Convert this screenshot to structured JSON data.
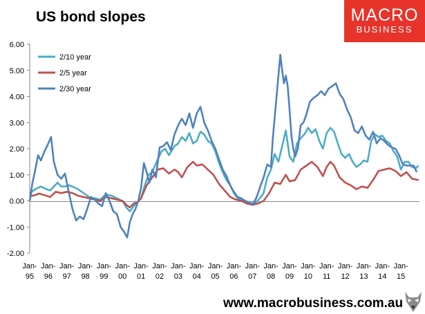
{
  "header": {
    "title": "US bond slopes"
  },
  "logo": {
    "line1": "MACRO",
    "line2": "BUSINESS"
  },
  "footer": {
    "url": "www.macrobusiness.com.au"
  },
  "colors": {
    "s2_10": "#4bacc6",
    "s2_5": "#c0504d",
    "s2_30": "#4f81bd",
    "brand": "#e8332a"
  },
  "chart_data": {
    "type": "line",
    "title": "US bond slopes",
    "xlabel": "",
    "ylabel": "",
    "xlim": [
      1995.0,
      2016.0
    ],
    "ylim": [
      -2.0,
      6.0
    ],
    "y_ticks": [
      "6.00",
      "5.00",
      "4.00",
      "3.00",
      "2.00",
      "1.00",
      "0.00",
      "-1.00",
      "-2.00"
    ],
    "x_ticks": [
      "Jan-95",
      "Jan-96",
      "Jan-97",
      "Jan-98",
      "Jan-99",
      "Jan-00",
      "Jan-01",
      "Jan-02",
      "Jan-03",
      "Jan-04",
      "Jan-05",
      "Jan-06",
      "Jan-07",
      "Jan-08",
      "Jan-09",
      "Jan-10",
      "Jan-11",
      "Jan-12",
      "Jan-13",
      "Jan-14",
      "Jan-15"
    ],
    "grid": false,
    "legend": "top-left",
    "series": [
      {
        "name": "2/10 year",
        "color": "#4bacc6",
        "points": [
          [
            1995.0,
            0.0
          ],
          [
            1995.1,
            0.35
          ],
          [
            1995.3,
            0.45
          ],
          [
            1995.6,
            0.55
          ],
          [
            1995.9,
            0.45
          ],
          [
            1996.1,
            0.4
          ],
          [
            1996.3,
            0.55
          ],
          [
            1996.5,
            0.7
          ],
          [
            1996.7,
            0.55
          ],
          [
            1996.9,
            0.55
          ],
          [
            1997.1,
            0.6
          ],
          [
            1997.3,
            0.55
          ],
          [
            1997.6,
            0.45
          ],
          [
            1997.9,
            0.3
          ],
          [
            1998.2,
            0.15
          ],
          [
            1998.5,
            0.1
          ],
          [
            1998.8,
            0.05
          ],
          [
            1999.1,
            0.25
          ],
          [
            1999.4,
            0.2
          ],
          [
            1999.7,
            0.1
          ],
          [
            2000.0,
            0.0
          ],
          [
            2000.2,
            -0.25
          ],
          [
            2000.4,
            -0.4
          ],
          [
            2000.6,
            -0.2
          ],
          [
            2000.8,
            -0.05
          ],
          [
            2001.0,
            0.1
          ],
          [
            2001.2,
            0.6
          ],
          [
            2001.4,
            1.0
          ],
          [
            2001.6,
            1.1
          ],
          [
            2001.9,
            1.6
          ],
          [
            2002.1,
            1.9
          ],
          [
            2002.3,
            2.0
          ],
          [
            2002.5,
            1.75
          ],
          [
            2002.8,
            2.1
          ],
          [
            2003.0,
            2.2
          ],
          [
            2003.2,
            2.45
          ],
          [
            2003.4,
            2.3
          ],
          [
            2003.6,
            2.6
          ],
          [
            2003.8,
            2.2
          ],
          [
            2004.0,
            2.3
          ],
          [
            2004.2,
            2.65
          ],
          [
            2004.4,
            2.55
          ],
          [
            2004.6,
            2.3
          ],
          [
            2004.8,
            2.2
          ],
          [
            2005.0,
            1.9
          ],
          [
            2005.2,
            1.45
          ],
          [
            2005.4,
            1.1
          ],
          [
            2005.6,
            0.8
          ],
          [
            2005.8,
            0.6
          ],
          [
            2006.0,
            0.3
          ],
          [
            2006.2,
            0.1
          ],
          [
            2006.4,
            0.05
          ],
          [
            2006.6,
            0.0
          ],
          [
            2006.8,
            -0.05
          ],
          [
            2007.0,
            -0.1
          ],
          [
            2007.2,
            -0.05
          ],
          [
            2007.4,
            0.1
          ],
          [
            2007.6,
            0.3
          ],
          [
            2007.8,
            0.9
          ],
          [
            2008.0,
            1.2
          ],
          [
            2008.2,
            1.8
          ],
          [
            2008.4,
            1.5
          ],
          [
            2008.6,
            2.1
          ],
          [
            2008.8,
            2.7
          ],
          [
            2009.0,
            1.7
          ],
          [
            2009.2,
            1.5
          ],
          [
            2009.4,
            2.2
          ],
          [
            2009.6,
            2.4
          ],
          [
            2009.8,
            2.55
          ],
          [
            2010.0,
            2.8
          ],
          [
            2010.2,
            2.6
          ],
          [
            2010.4,
            2.75
          ],
          [
            2010.6,
            2.3
          ],
          [
            2010.8,
            2.0
          ],
          [
            2011.0,
            2.6
          ],
          [
            2011.2,
            2.8
          ],
          [
            2011.4,
            2.65
          ],
          [
            2011.6,
            2.2
          ],
          [
            2011.8,
            1.8
          ],
          [
            2012.0,
            1.65
          ],
          [
            2012.2,
            1.8
          ],
          [
            2012.4,
            1.5
          ],
          [
            2012.6,
            1.3
          ],
          [
            2012.8,
            1.4
          ],
          [
            2013.0,
            1.55
          ],
          [
            2013.2,
            1.5
          ],
          [
            2013.4,
            2.3
          ],
          [
            2013.6,
            2.55
          ],
          [
            2013.8,
            2.45
          ],
          [
            2014.0,
            2.5
          ],
          [
            2014.2,
            2.3
          ],
          [
            2014.4,
            2.2
          ],
          [
            2014.6,
            1.9
          ],
          [
            2014.8,
            1.7
          ],
          [
            2015.0,
            1.2
          ],
          [
            2015.2,
            1.5
          ],
          [
            2015.4,
            1.5
          ],
          [
            2015.6,
            1.3
          ],
          [
            2015.8,
            1.25
          ],
          [
            2015.95,
            1.35
          ]
        ]
      },
      {
        "name": "2/5 year",
        "color": "#c0504d",
        "points": [
          [
            1995.0,
            0.2
          ],
          [
            1995.2,
            0.2
          ],
          [
            1995.5,
            0.28
          ],
          [
            1995.8,
            0.22
          ],
          [
            1996.1,
            0.15
          ],
          [
            1996.4,
            0.35
          ],
          [
            1996.7,
            0.3
          ],
          [
            1997.0,
            0.35
          ],
          [
            1997.3,
            0.3
          ],
          [
            1997.6,
            0.2
          ],
          [
            1997.9,
            0.15
          ],
          [
            1998.2,
            0.1
          ],
          [
            1998.5,
            0.05
          ],
          [
            1998.8,
            0.0
          ],
          [
            1999.1,
            0.15
          ],
          [
            1999.4,
            0.1
          ],
          [
            1999.7,
            0.05
          ],
          [
            2000.0,
            0.0
          ],
          [
            2000.2,
            -0.15
          ],
          [
            2000.4,
            -0.25
          ],
          [
            2000.6,
            -0.1
          ],
          [
            2000.8,
            -0.05
          ],
          [
            2001.0,
            0.1
          ],
          [
            2001.3,
            0.6
          ],
          [
            2001.6,
            0.9
          ],
          [
            2001.9,
            1.2
          ],
          [
            2002.2,
            1.25
          ],
          [
            2002.5,
            1.05
          ],
          [
            2002.8,
            1.2
          ],
          [
            2003.0,
            1.1
          ],
          [
            2003.2,
            0.9
          ],
          [
            2003.5,
            1.3
          ],
          [
            2003.8,
            1.5
          ],
          [
            2004.0,
            1.35
          ],
          [
            2004.3,
            1.4
          ],
          [
            2004.6,
            1.2
          ],
          [
            2004.9,
            1.0
          ],
          [
            2005.2,
            0.65
          ],
          [
            2005.5,
            0.4
          ],
          [
            2005.8,
            0.15
          ],
          [
            2006.1,
            0.05
          ],
          [
            2006.4,
            0.0
          ],
          [
            2006.7,
            -0.1
          ],
          [
            2007.0,
            -0.15
          ],
          [
            2007.3,
            -0.1
          ],
          [
            2007.6,
            0.0
          ],
          [
            2007.9,
            0.3
          ],
          [
            2008.2,
            0.7
          ],
          [
            2008.5,
            0.65
          ],
          [
            2008.8,
            1.0
          ],
          [
            2009.0,
            0.75
          ],
          [
            2009.3,
            0.8
          ],
          [
            2009.6,
            1.2
          ],
          [
            2009.9,
            1.35
          ],
          [
            2010.2,
            1.5
          ],
          [
            2010.5,
            1.3
          ],
          [
            2010.8,
            0.95
          ],
          [
            2011.0,
            1.3
          ],
          [
            2011.2,
            1.5
          ],
          [
            2011.4,
            1.35
          ],
          [
            2011.7,
            0.9
          ],
          [
            2012.0,
            0.7
          ],
          [
            2012.3,
            0.6
          ],
          [
            2012.6,
            0.45
          ],
          [
            2012.9,
            0.55
          ],
          [
            2013.2,
            0.5
          ],
          [
            2013.5,
            0.8
          ],
          [
            2013.8,
            1.15
          ],
          [
            2014.1,
            1.2
          ],
          [
            2014.4,
            1.25
          ],
          [
            2014.7,
            1.15
          ],
          [
            2015.0,
            0.95
          ],
          [
            2015.3,
            1.1
          ],
          [
            2015.6,
            0.85
          ],
          [
            2015.95,
            0.8
          ]
        ]
      },
      {
        "name": "2/30 year",
        "color": "#4f81bd",
        "points": [
          [
            1995.0,
            0.0
          ],
          [
            1995.15,
            0.7
          ],
          [
            1995.3,
            1.2
          ],
          [
            1995.45,
            1.75
          ],
          [
            1995.6,
            1.55
          ],
          [
            1995.8,
            1.9
          ],
          [
            1996.0,
            2.2
          ],
          [
            1996.15,
            2.45
          ],
          [
            1996.3,
            1.5
          ],
          [
            1996.5,
            1.0
          ],
          [
            1996.7,
            0.85
          ],
          [
            1996.9,
            1.05
          ],
          [
            1997.1,
            0.35
          ],
          [
            1997.3,
            -0.3
          ],
          [
            1997.5,
            -0.75
          ],
          [
            1997.7,
            -0.6
          ],
          [
            1997.9,
            -0.7
          ],
          [
            1998.1,
            -0.3
          ],
          [
            1998.3,
            0.15
          ],
          [
            1998.5,
            0.05
          ],
          [
            1998.7,
            -0.1
          ],
          [
            1998.9,
            -0.2
          ],
          [
            1999.1,
            0.3
          ],
          [
            1999.3,
            0.0
          ],
          [
            1999.5,
            -0.4
          ],
          [
            1999.7,
            -0.5
          ],
          [
            1999.9,
            -1.0
          ],
          [
            2000.1,
            -1.2
          ],
          [
            2000.25,
            -1.4
          ],
          [
            2000.4,
            -0.8
          ],
          [
            2000.55,
            -0.5
          ],
          [
            2000.7,
            -0.3
          ],
          [
            2000.85,
            0.0
          ],
          [
            2001.0,
            0.5
          ],
          [
            2001.15,
            1.45
          ],
          [
            2001.3,
            1.1
          ],
          [
            2001.45,
            0.7
          ],
          [
            2001.6,
            1.2
          ],
          [
            2001.8,
            0.9
          ],
          [
            2002.0,
            2.05
          ],
          [
            2002.2,
            2.1
          ],
          [
            2002.4,
            2.25
          ],
          [
            2002.6,
            1.95
          ],
          [
            2002.8,
            2.55
          ],
          [
            2003.0,
            2.9
          ],
          [
            2003.2,
            3.15
          ],
          [
            2003.4,
            2.9
          ],
          [
            2003.6,
            3.35
          ],
          [
            2003.8,
            2.8
          ],
          [
            2004.0,
            3.35
          ],
          [
            2004.2,
            3.6
          ],
          [
            2004.4,
            3.0
          ],
          [
            2004.6,
            2.7
          ],
          [
            2004.8,
            2.3
          ],
          [
            2005.0,
            2.0
          ],
          [
            2005.2,
            1.6
          ],
          [
            2005.4,
            1.2
          ],
          [
            2005.6,
            0.95
          ],
          [
            2005.8,
            0.6
          ],
          [
            2006.0,
            0.35
          ],
          [
            2006.2,
            0.15
          ],
          [
            2006.4,
            0.1
          ],
          [
            2006.6,
            0.0
          ],
          [
            2006.8,
            -0.05
          ],
          [
            2007.0,
            -0.15
          ],
          [
            2007.2,
            0.1
          ],
          [
            2007.4,
            0.5
          ],
          [
            2007.6,
            0.9
          ],
          [
            2007.8,
            1.4
          ],
          [
            2008.0,
            1.3
          ],
          [
            2008.1,
            2.4
          ],
          [
            2008.2,
            3.2
          ],
          [
            2008.3,
            4.0
          ],
          [
            2008.4,
            4.8
          ],
          [
            2008.5,
            5.6
          ],
          [
            2008.6,
            5.0
          ],
          [
            2008.7,
            4.5
          ],
          [
            2008.8,
            4.8
          ],
          [
            2008.9,
            4.4
          ],
          [
            2009.0,
            3.5
          ],
          [
            2009.1,
            2.5
          ],
          [
            2009.2,
            2.0
          ],
          [
            2009.3,
            1.7
          ],
          [
            2009.45,
            2.0
          ],
          [
            2009.6,
            2.9
          ],
          [
            2009.75,
            3.0
          ],
          [
            2009.9,
            3.3
          ],
          [
            2010.1,
            3.8
          ],
          [
            2010.3,
            3.95
          ],
          [
            2010.5,
            4.05
          ],
          [
            2010.7,
            4.2
          ],
          [
            2010.9,
            4.05
          ],
          [
            2011.1,
            4.3
          ],
          [
            2011.3,
            4.4
          ],
          [
            2011.5,
            4.5
          ],
          [
            2011.7,
            4.1
          ],
          [
            2011.9,
            3.9
          ],
          [
            2012.1,
            3.5
          ],
          [
            2012.3,
            3.2
          ],
          [
            2012.5,
            2.7
          ],
          [
            2012.7,
            2.6
          ],
          [
            2012.9,
            2.85
          ],
          [
            2013.1,
            2.5
          ],
          [
            2013.3,
            2.35
          ],
          [
            2013.5,
            2.65
          ],
          [
            2013.7,
            2.2
          ],
          [
            2013.9,
            2.4
          ],
          [
            2014.1,
            2.3
          ],
          [
            2014.3,
            2.15
          ],
          [
            2014.5,
            2.05
          ],
          [
            2014.7,
            2.0
          ],
          [
            2014.9,
            1.75
          ],
          [
            2015.1,
            1.4
          ],
          [
            2015.3,
            1.35
          ],
          [
            2015.5,
            1.35
          ],
          [
            2015.7,
            1.35
          ],
          [
            2015.85,
            1.1
          ]
        ]
      }
    ]
  }
}
